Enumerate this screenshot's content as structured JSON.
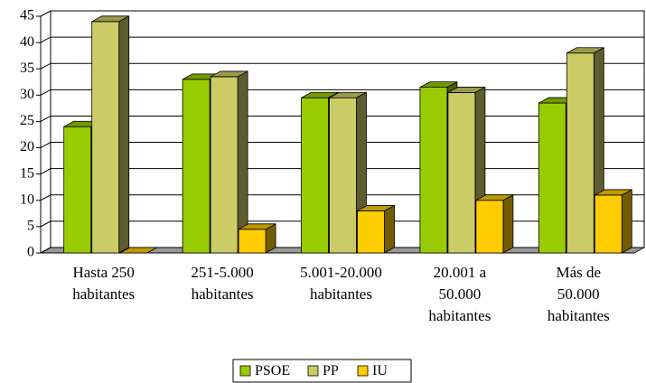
{
  "chart_data": {
    "type": "bar3d",
    "categories": [
      "Hasta 250\nhabitantes",
      "251-5.000\nhabitantes",
      "5.001-20.000\nhabitantes",
      "20.001 a\n50.000\nhabitantes",
      "Más de\n50.000\nhabitantes"
    ],
    "series": [
      {
        "name": "PSOE",
        "color": "#99cc00",
        "values": [
          24,
          33,
          29.5,
          31.5,
          28.5
        ]
      },
      {
        "name": "PP",
        "color": "#cccc66",
        "values": [
          44,
          33.5,
          29.5,
          30.5,
          38
        ]
      },
      {
        "name": "IU",
        "color": "#ffcc00",
        "values": [
          0,
          4.5,
          8,
          10,
          11
        ]
      }
    ],
    "ylim": [
      0,
      45
    ],
    "yticks": [
      0,
      5,
      10,
      15,
      20,
      25,
      30,
      35,
      40,
      45
    ],
    "grid": true,
    "legend": "bottom"
  }
}
